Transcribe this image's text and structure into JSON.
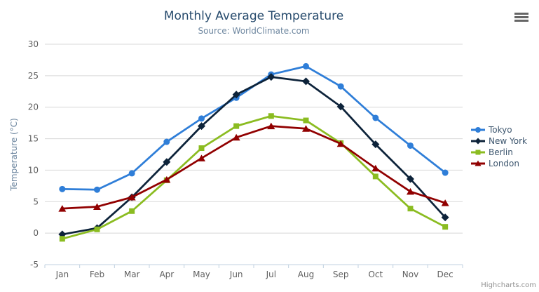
{
  "chart_data": {
    "type": "line",
    "title": "Monthly Average Temperature",
    "subtitle": "Source: WorldClimate.com",
    "xlabel": "",
    "ylabel": "Temperature (°C)",
    "ylim": [
      -5,
      30
    ],
    "ytick_step": 5,
    "grid": true,
    "legend_position": "right",
    "categories": [
      "Jan",
      "Feb",
      "Mar",
      "Apr",
      "May",
      "Jun",
      "Jul",
      "Aug",
      "Sep",
      "Oct",
      "Nov",
      "Dec"
    ],
    "series": [
      {
        "name": "Tokyo",
        "color": "#2f7ed8",
        "marker": "circle",
        "values": [
          7.0,
          6.9,
          9.5,
          14.5,
          18.2,
          21.5,
          25.2,
          26.5,
          23.3,
          18.3,
          13.9,
          9.6
        ]
      },
      {
        "name": "New York",
        "color": "#0d233a",
        "marker": "diamond",
        "values": [
          -0.2,
          0.8,
          5.7,
          11.3,
          17.0,
          22.0,
          24.8,
          24.1,
          20.1,
          14.1,
          8.6,
          2.5
        ]
      },
      {
        "name": "Berlin",
        "color": "#8bbc21",
        "marker": "square",
        "values": [
          -0.9,
          0.6,
          3.5,
          8.4,
          13.5,
          17.0,
          18.6,
          17.9,
          14.3,
          9.0,
          3.9,
          1.0
        ]
      },
      {
        "name": "London",
        "color": "#910000",
        "marker": "triangle",
        "values": [
          3.9,
          4.2,
          5.7,
          8.5,
          11.9,
          15.2,
          17.0,
          16.6,
          14.2,
          10.3,
          6.6,
          4.8
        ]
      }
    ],
    "credits": "Highcharts.com"
  },
  "icons": {
    "context_menu": "hamburger-icon"
  },
  "colors": {
    "title": "#274b6d",
    "subtitle": "#6d869f",
    "axis_label": "#606060",
    "axis_title": "#6d869f",
    "grid_line": "#d8d8d8",
    "axis_line": "#c0d0e0",
    "legend_text": "#3e576f",
    "credits": "#909090",
    "background": "#ffffff"
  }
}
